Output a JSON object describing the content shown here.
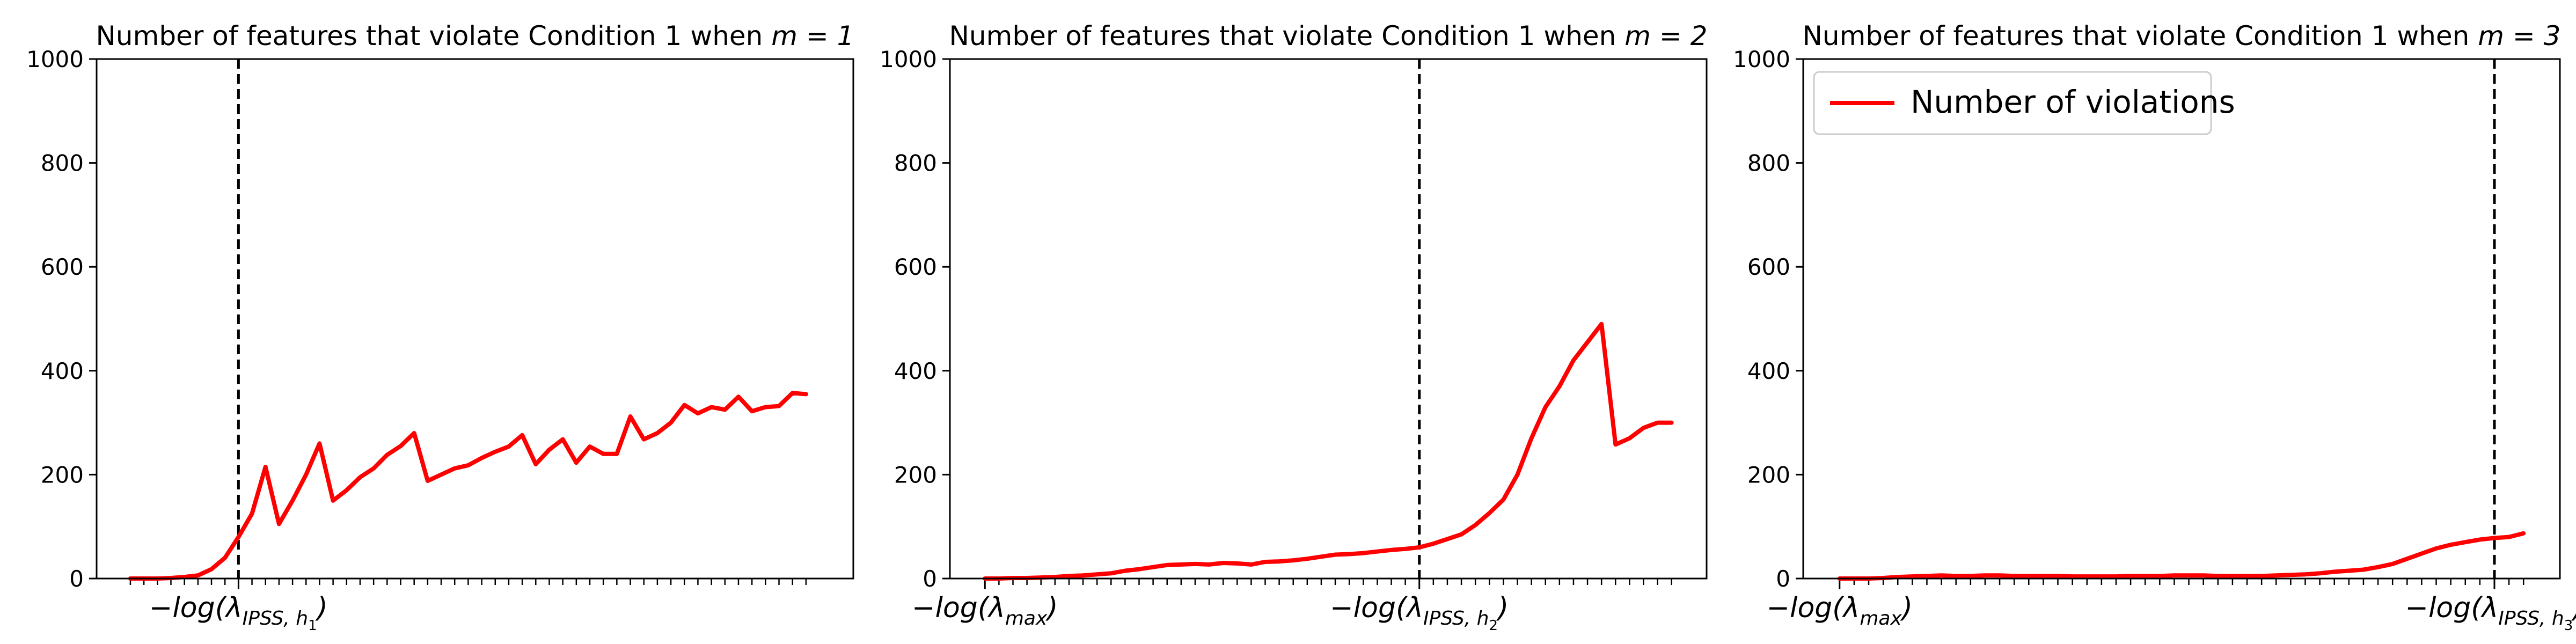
{
  "chart_data": [
    {
      "type": "line",
      "title_text": "Number of features that violate Condition 1 when ",
      "title_m": "m = 1",
      "ylim": [
        0,
        1000
      ],
      "yticks": [
        0,
        200,
        400,
        600,
        800,
        1000
      ],
      "ytick_labels": [
        "0",
        "200",
        "400",
        "600",
        "800",
        "1000"
      ],
      "xlim": [
        -2.5,
        53.5
      ],
      "n_minor_ticks": 51,
      "named_ticks": [
        {
          "x": 8,
          "text": "−log(λ",
          "sub": "IPSS, h",
          "subsub": "1",
          "close": ")"
        }
      ],
      "vline_x": 8,
      "legend": false,
      "series": [
        {
          "color": "#ff0000",
          "x": [
            0,
            1,
            2,
            3,
            4,
            5,
            6,
            7,
            8,
            9,
            10,
            11,
            12,
            13,
            14,
            15,
            16,
            17,
            18,
            19,
            20,
            21,
            22,
            23,
            24,
            25,
            26,
            27,
            28,
            29,
            30,
            31,
            32,
            33,
            34,
            35,
            36,
            37,
            38,
            39,
            40,
            41,
            42,
            43,
            44,
            45,
            46,
            47,
            48,
            49,
            50
          ],
          "y": [
            0,
            0,
            0,
            1,
            3,
            6,
            18,
            40,
            80,
            125,
            215,
            105,
            150,
            200,
            260,
            150,
            170,
            195,
            212,
            238,
            255,
            280,
            188,
            200,
            212,
            218,
            232,
            244,
            254,
            276,
            220,
            248,
            268,
            223,
            254,
            240,
            240,
            312,
            268,
            280,
            300,
            334,
            318,
            330,
            325,
            350,
            322,
            330,
            332,
            357,
            355
          ]
        }
      ]
    },
    {
      "type": "line",
      "title_text": "Number of features that violate Condition 1 when ",
      "title_m": "m = 2",
      "ylim": [
        0,
        1000
      ],
      "yticks": [
        0,
        200,
        400,
        600,
        800,
        1000
      ],
      "ytick_labels": [
        "0",
        "200",
        "400",
        "600",
        "800",
        "1000"
      ],
      "xlim": [
        -2.5,
        51.5
      ],
      "n_minor_ticks": 50,
      "named_ticks": [
        {
          "x": 0,
          "text": "−log(λ",
          "sub": "max",
          "subsub": "",
          "close": ")"
        },
        {
          "x": 31,
          "text": "−log(λ",
          "sub": "IPSS, h",
          "subsub": "2",
          "close": ")"
        }
      ],
      "vline_x": 31,
      "legend": false,
      "series": [
        {
          "color": "#ff0000",
          "x": [
            0,
            1,
            2,
            3,
            4,
            5,
            6,
            7,
            8,
            9,
            10,
            11,
            12,
            13,
            14,
            15,
            16,
            17,
            18,
            19,
            20,
            21,
            22,
            23,
            24,
            25,
            26,
            27,
            28,
            29,
            30,
            31,
            32,
            33,
            34,
            35,
            36,
            37,
            38,
            39,
            40,
            41,
            42,
            43,
            44,
            45,
            46,
            47,
            48,
            49
          ],
          "y": [
            0,
            0,
            1,
            1,
            2,
            3,
            5,
            6,
            8,
            10,
            15,
            18,
            22,
            26,
            27,
            28,
            27,
            30,
            29,
            27,
            32,
            33,
            35,
            38,
            42,
            46,
            47,
            49,
            52,
            55,
            57,
            60,
            67,
            76,
            85,
            103,
            126,
            152,
            200,
            270,
            330,
            370,
            420,
            455,
            490,
            258,
            270,
            290,
            300,
            300
          ]
        }
      ]
    },
    {
      "type": "line",
      "title_text": "Number of features that violate Condition 1 when ",
      "title_m": "m = 3",
      "ylim": [
        0,
        1000
      ],
      "yticks": [
        0,
        200,
        400,
        600,
        800,
        1000
      ],
      "ytick_labels": [
        "0",
        "200",
        "400",
        "600",
        "800",
        "1000"
      ],
      "xlim": [
        -2.5,
        49.5
      ],
      "n_minor_ticks": 48,
      "named_ticks": [
        {
          "x": 0,
          "text": "−log(λ",
          "sub": "max",
          "subsub": "",
          "close": ")"
        },
        {
          "x": 45,
          "text": "−log(λ",
          "sub": "IPSS, h",
          "subsub": "3",
          "close": ")"
        }
      ],
      "vline_x": 45,
      "legend": true,
      "legend_position": "top-left",
      "legend_label": "Number of violations",
      "series": [
        {
          "color": "#ff0000",
          "x": [
            0,
            1,
            2,
            3,
            4,
            5,
            6,
            7,
            8,
            9,
            10,
            11,
            12,
            13,
            14,
            15,
            16,
            17,
            18,
            19,
            20,
            21,
            22,
            23,
            24,
            25,
            26,
            27,
            28,
            29,
            30,
            31,
            32,
            33,
            34,
            35,
            36,
            37,
            38,
            39,
            40,
            41,
            42,
            43,
            44,
            45,
            46,
            47
          ],
          "y": [
            0,
            0,
            0,
            1,
            3,
            4,
            5,
            6,
            5,
            5,
            6,
            6,
            5,
            5,
            5,
            5,
            4,
            4,
            4,
            4,
            5,
            5,
            5,
            6,
            6,
            6,
            5,
            5,
            5,
            5,
            6,
            7,
            8,
            10,
            13,
            15,
            17,
            22,
            28,
            38,
            48,
            58,
            65,
            70,
            75,
            78,
            80,
            87
          ]
        }
      ]
    }
  ]
}
